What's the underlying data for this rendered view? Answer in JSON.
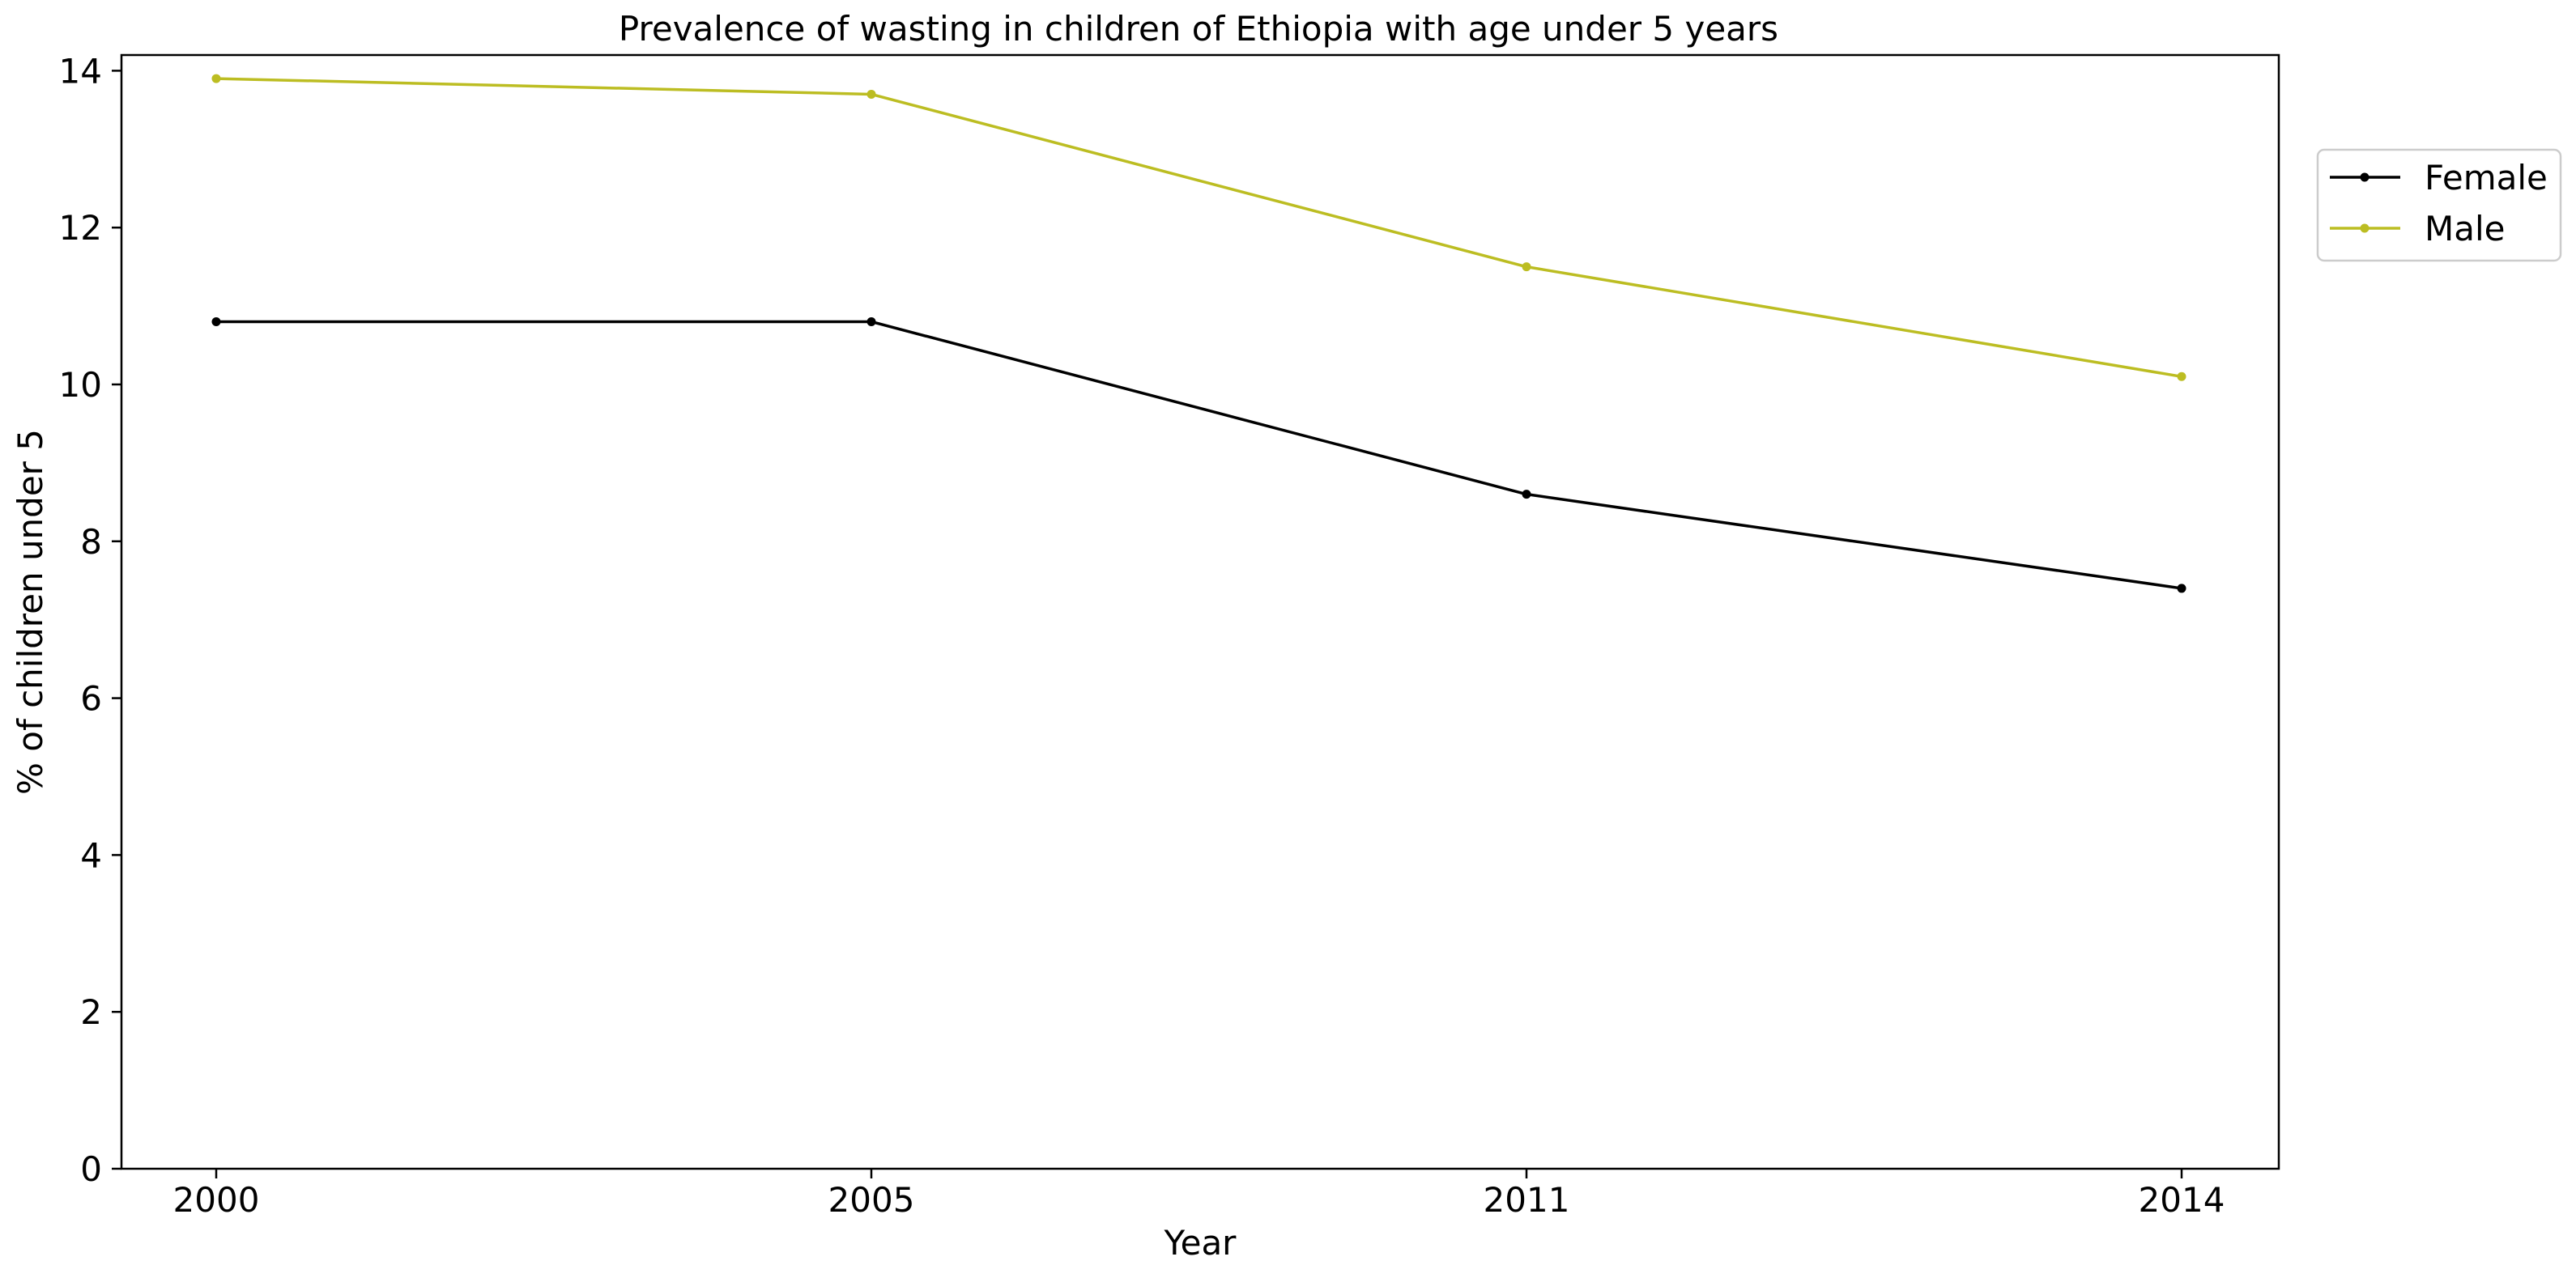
{
  "chart_data": {
    "type": "line",
    "title": "Prevalence of wasting in children of Ethiopia with age under 5 years",
    "xlabel": "Year",
    "ylabel": "% of children under 5",
    "categories": [
      "2000",
      "2005",
      "2011",
      "2014"
    ],
    "ylim": [
      0,
      14.2
    ],
    "yticks": [
      0,
      2,
      4,
      6,
      8,
      10,
      12,
      14
    ],
    "grid": false,
    "legend_position": "outside-top-right",
    "series": [
      {
        "name": "Female",
        "color": "#000000",
        "values": [
          10.8,
          10.8,
          8.6,
          7.4
        ]
      },
      {
        "name": "Male",
        "color": "#bcbd22",
        "values": [
          13.9,
          13.7,
          11.5,
          10.1
        ]
      }
    ]
  }
}
